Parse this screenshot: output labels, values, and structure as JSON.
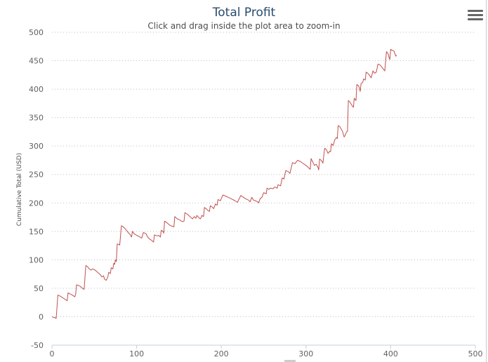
{
  "chart_data": {
    "type": "line",
    "title": "Total Profit",
    "subtitle": "Click and drag inside the plot area to zoom-in",
    "ylabel": "Cumulative Total (USD)",
    "xlabel": "",
    "xlim": [
      0,
      500
    ],
    "ylim": [
      -50,
      500
    ],
    "xticks": [
      0,
      100,
      200,
      300,
      400,
      500
    ],
    "yticks": [
      -50,
      0,
      50,
      100,
      150,
      200,
      250,
      300,
      350,
      400,
      450,
      500
    ],
    "grid": "horizontal dotted",
    "legend": "none",
    "line_color": "#c0504d",
    "series": [
      {
        "points": [
          [
            0,
            0
          ],
          [
            4,
            -2
          ],
          [
            5,
            -3
          ],
          [
            7,
            38
          ],
          [
            10,
            36
          ],
          [
            14,
            32
          ],
          [
            18,
            28
          ],
          [
            19,
            42
          ],
          [
            24,
            38
          ],
          [
            27,
            35
          ],
          [
            28,
            40
          ],
          [
            29,
            56
          ],
          [
            33,
            54
          ],
          [
            36,
            50
          ],
          [
            38,
            48
          ],
          [
            40,
            90
          ],
          [
            42,
            88
          ],
          [
            44,
            84
          ],
          [
            46,
            82
          ],
          [
            48,
            84
          ],
          [
            51,
            82
          ],
          [
            54,
            78
          ],
          [
            57,
            74
          ],
          [
            59,
            70
          ],
          [
            61,
            72
          ],
          [
            62,
            66
          ],
          [
            64,
            64
          ],
          [
            66,
            70
          ],
          [
            67,
            78
          ],
          [
            69,
            76
          ],
          [
            70,
            86
          ],
          [
            72,
            84
          ],
          [
            73,
            94
          ],
          [
            74,
            92
          ],
          [
            75,
            100
          ],
          [
            76,
            97
          ],
          [
            77,
            128
          ],
          [
            79,
            127
          ],
          [
            80,
            126
          ],
          [
            82,
            160
          ],
          [
            85,
            157
          ],
          [
            88,
            152
          ],
          [
            90,
            148
          ],
          [
            92,
            145
          ],
          [
            94,
            140
          ],
          [
            95,
            150
          ],
          [
            97,
            146
          ],
          [
            100,
            143
          ],
          [
            103,
            141
          ],
          [
            106,
            138
          ],
          [
            108,
            148
          ],
          [
            111,
            146
          ],
          [
            113,
            140
          ],
          [
            115,
            137
          ],
          [
            118,
            134
          ],
          [
            120,
            131
          ],
          [
            121,
            144
          ],
          [
            124,
            142
          ],
          [
            126,
            143
          ],
          [
            128,
            140
          ],
          [
            129,
            152
          ],
          [
            131,
            150
          ],
          [
            132,
            147
          ],
          [
            133,
            168
          ],
          [
            136,
            165
          ],
          [
            139,
            161
          ],
          [
            142,
            159
          ],
          [
            144,
            158
          ],
          [
            145,
            176
          ],
          [
            148,
            172
          ],
          [
            151,
            170
          ],
          [
            154,
            167
          ],
          [
            156,
            168
          ],
          [
            157,
            183
          ],
          [
            160,
            180
          ],
          [
            163,
            176
          ],
          [
            166,
            172
          ],
          [
            168,
            176
          ],
          [
            170,
            173
          ],
          [
            171,
            178
          ],
          [
            173,
            175
          ],
          [
            175,
            172
          ],
          [
            176,
            174
          ],
          [
            177,
            178
          ],
          [
            179,
            176
          ],
          [
            180,
            192
          ],
          [
            182,
            190
          ],
          [
            184,
            187
          ],
          [
            186,
            185
          ],
          [
            187,
            195
          ],
          [
            189,
            193
          ],
          [
            191,
            190
          ],
          [
            193,
            198
          ],
          [
            195,
            196
          ],
          [
            196,
            206
          ],
          [
            199,
            204
          ],
          [
            200,
            208
          ],
          [
            202,
            214
          ],
          [
            205,
            212
          ],
          [
            208,
            210
          ],
          [
            212,
            207
          ],
          [
            216,
            204
          ],
          [
            219,
            201
          ],
          [
            223,
            213
          ],
          [
            226,
            210
          ],
          [
            229,
            207
          ],
          [
            232,
            205
          ],
          [
            234,
            202
          ],
          [
            236,
            210
          ],
          [
            238,
            205
          ],
          [
            240,
            204
          ],
          [
            243,
            202
          ],
          [
            244,
            200
          ],
          [
            246,
            208
          ],
          [
            248,
            210
          ],
          [
            250,
            218
          ],
          [
            252,
            217
          ],
          [
            253,
            216
          ],
          [
            254,
            226
          ],
          [
            256,
            224
          ],
          [
            258,
            226
          ],
          [
            261,
            225
          ],
          [
            263,
            228
          ],
          [
            266,
            226
          ],
          [
            267,
            232
          ],
          [
            270,
            230
          ],
          [
            272,
            244
          ],
          [
            274,
            242
          ],
          [
            276,
            257
          ],
          [
            279,
            255
          ],
          [
            281,
            252
          ],
          [
            284,
            271
          ],
          [
            287,
            269
          ],
          [
            290,
            275
          ],
          [
            293,
            273
          ],
          [
            296,
            270
          ],
          [
            300,
            266
          ],
          [
            303,
            262
          ],
          [
            305,
            259
          ],
          [
            306,
            278
          ],
          [
            308,
            272
          ],
          [
            310,
            266
          ],
          [
            312,
            268
          ],
          [
            314,
            263
          ],
          [
            315,
            258
          ],
          [
            316,
            277
          ],
          [
            318,
            275
          ],
          [
            320,
            270
          ],
          [
            322,
            296
          ],
          [
            324,
            294
          ],
          [
            326,
            287
          ],
          [
            328,
            291
          ],
          [
            329,
            290
          ],
          [
            330,
            304
          ],
          [
            332,
            301
          ],
          [
            333,
            306
          ],
          [
            334,
            311
          ],
          [
            336,
            315
          ],
          [
            337,
            313
          ],
          [
            338,
            336
          ],
          [
            340,
            334
          ],
          [
            343,
            326
          ],
          [
            345,
            316
          ],
          [
            346,
            318
          ],
          [
            347,
            322
          ],
          [
            348,
            325
          ],
          [
            349,
            326
          ],
          [
            350,
            380
          ],
          [
            352,
            377
          ],
          [
            354,
            372
          ],
          [
            356,
            368
          ],
          [
            357,
            384
          ],
          [
            359,
            380
          ],
          [
            360,
            408
          ],
          [
            362,
            406
          ],
          [
            363,
            402
          ],
          [
            364,
            396
          ],
          [
            365,
            410
          ],
          [
            367,
            412
          ],
          [
            368,
            418
          ],
          [
            370,
            416
          ],
          [
            371,
            430
          ],
          [
            373,
            428
          ],
          [
            375,
            424
          ],
          [
            377,
            420
          ],
          [
            379,
            432
          ],
          [
            381,
            428
          ],
          [
            383,
            430
          ],
          [
            385,
            444
          ],
          [
            387,
            443
          ],
          [
            389,
            440
          ],
          [
            391,
            436
          ],
          [
            393,
            432
          ],
          [
            395,
            466
          ],
          [
            397,
            462
          ],
          [
            398,
            456
          ],
          [
            399,
            452
          ],
          [
            400,
            470
          ],
          [
            402,
            468
          ],
          [
            404,
            467
          ],
          [
            406,
            458
          ],
          [
            407,
            460
          ]
        ]
      }
    ]
  }
}
